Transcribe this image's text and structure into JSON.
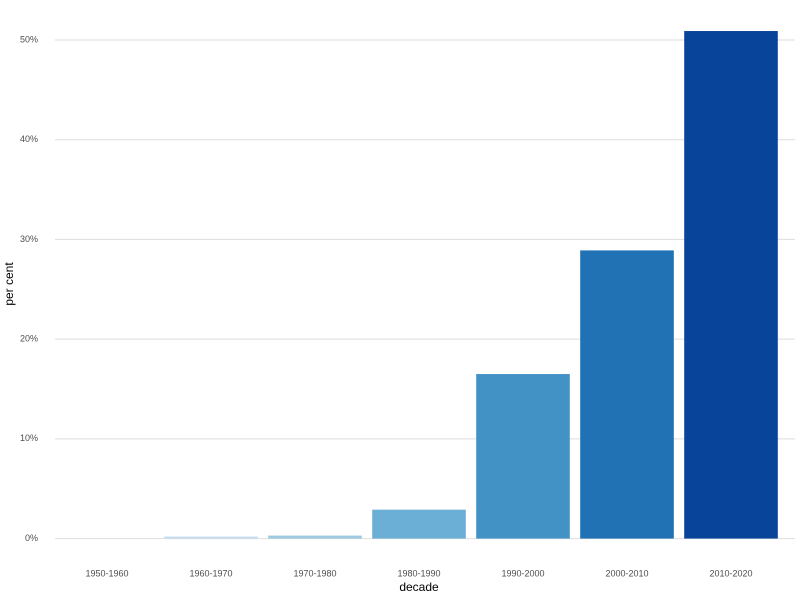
{
  "chart_data": {
    "type": "bar",
    "x_label": "decade",
    "y_label": "per cent",
    "categories": [
      "1950-1960",
      "1960-1970",
      "1970-1980",
      "1980-1990",
      "1990-2000",
      "2000-2010",
      "2010-2020"
    ],
    "values": [
      0,
      0.2,
      0.3,
      2.9,
      16.5,
      28.9,
      50.9
    ],
    "colors": [
      "#f7fbff",
      "#c6dbef",
      "#9ecae1",
      "#6baed6",
      "#4292c6",
      "#2171b5",
      "#08459a"
    ],
    "ylim": [
      -2.55,
      53.45
    ],
    "yticks": [
      {
        "value": 0,
        "label": "0%"
      },
      {
        "value": 10,
        "label": "10%"
      },
      {
        "value": 20,
        "label": "20%"
      },
      {
        "value": 30,
        "label": "30%"
      },
      {
        "value": 40,
        "label": "40%"
      },
      {
        "value": 50,
        "label": "50%"
      }
    ],
    "grid": true
  }
}
